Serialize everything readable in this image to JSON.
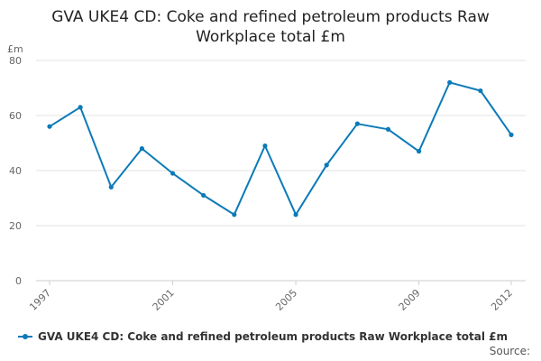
{
  "chart_data": {
    "type": "line",
    "title": "GVA UKE4 CD: Coke and refined petroleum products Raw Workplace total £m",
    "title_lines": [
      "GVA UKE4 CD: Coke and refined petroleum products Raw",
      "Workplace total £m"
    ],
    "unit_label": "£m",
    "x": [
      1997,
      1998,
      1999,
      2000,
      2001,
      2002,
      2003,
      2004,
      2005,
      2006,
      2007,
      2008,
      2009,
      2010,
      2011,
      2012
    ],
    "x_tick_labels": [
      "1997",
      "2001",
      "2005",
      "2009",
      "2012"
    ],
    "y_ticks": [
      0,
      20,
      40,
      60,
      80
    ],
    "ylim": [
      0,
      80
    ],
    "grid": true,
    "series": [
      {
        "name": "GVA UKE4 CD: Coke and refined petroleum products Raw Workplace total £m",
        "color": "#0b7ab8",
        "values": [
          56,
          63,
          34,
          48,
          39,
          31,
          24,
          49,
          24,
          42,
          57,
          55,
          47,
          72,
          69,
          53
        ]
      }
    ],
    "legend_position": "bottom-left",
    "source_label": "Source:"
  }
}
